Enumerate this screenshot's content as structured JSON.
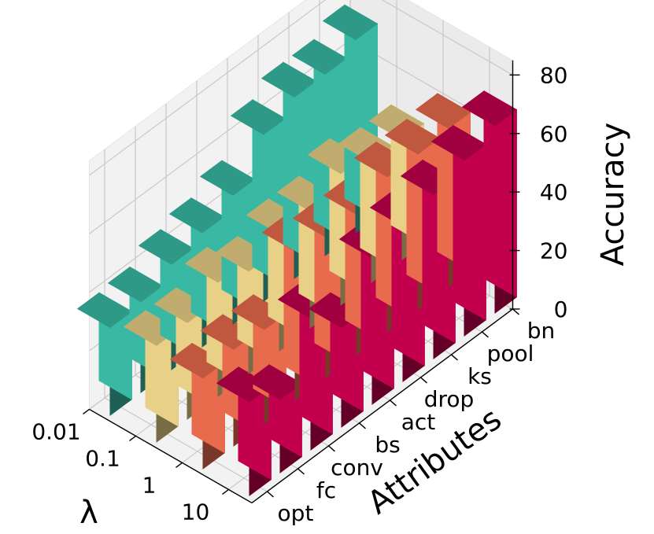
{
  "chart_data": {
    "type": "bar3d",
    "xlabel": "Attributes",
    "ylabel": "λ",
    "zlabel": "Accuracy",
    "attributes": [
      "opt",
      "fc",
      "conv",
      "bs",
      "act",
      "drop",
      "ks",
      "pool",
      "bn"
    ],
    "lambdas": [
      "10",
      "1",
      "0.1",
      "0.01"
    ],
    "zticks": [
      "0",
      "20",
      "40",
      "60",
      "80"
    ],
    "zlim": [
      0,
      80
    ],
    "series": [
      {
        "lambda": "10",
        "color": "#c8004f",
        "values": [
          32,
          25,
          45,
          34,
          50,
          53,
          56,
          60,
          64
        ]
      },
      {
        "lambda": "1",
        "color": "#ef6e4f",
        "values": [
          31,
          33,
          32,
          51,
          48,
          48,
          53,
          53,
          54
        ]
      },
      {
        "lambda": "0.1",
        "color": "#efd78a",
        "values": [
          33,
          33,
          39,
          35,
          40,
          40,
          45,
          41,
          41
        ]
      },
      {
        "lambda": "0.01",
        "color": "#3bbfa9",
        "values": [
          30,
          31,
          36,
          39,
          44,
          57,
          62,
          62,
          66
        ]
      }
    ],
    "grid": true
  }
}
